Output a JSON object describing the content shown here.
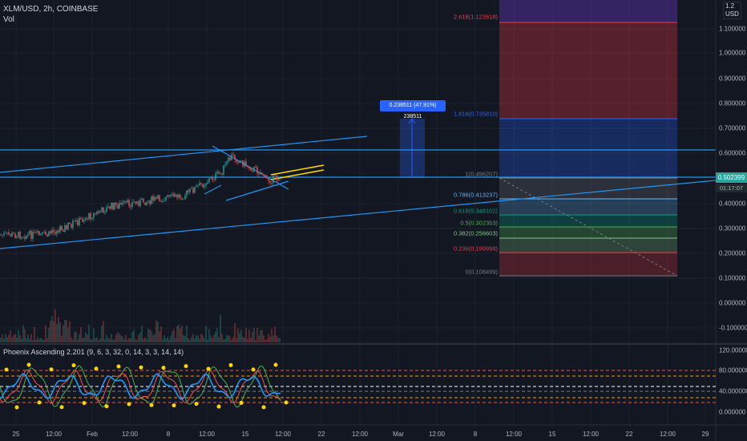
{
  "header": {
    "title": "XLM/USD, 2h, COINBASE",
    "volume_label": "Vol",
    "oscillator_label": "Phoenix Ascending 2.201 (9, 6, 3, 32, 0, 14, 3, 3, 14, 14)"
  },
  "price_axis": {
    "unit": "USD",
    "top_value": "1.2",
    "labels": [
      "1.100000",
      "1.000000",
      "0.900000",
      "0.800000",
      "0.700000",
      "0.600000",
      "0.400000",
      "0.300000",
      "0.200000",
      "0.100000",
      "0.000000",
      "-0.100000"
    ],
    "current_price": "0.502399",
    "countdown": "01:17:07"
  },
  "oscillator_axis": {
    "labels": [
      "120.000000",
      "80.000000",
      "40.000000",
      "0.000000"
    ]
  },
  "time_axis": {
    "labels": [
      "25",
      "12:00",
      "Feb",
      "12:00",
      "8",
      "12:00",
      "15",
      "12:00",
      "22",
      "12:00",
      "Mar",
      "12:00",
      "8",
      "12:00",
      "15",
      "12:00",
      "22",
      "12:00",
      "29"
    ]
  },
  "fibonacci": {
    "levels": [
      {
        "label": "2.618(1.123518)",
        "color": "#f23645"
      },
      {
        "label": "1.618(0.735810)",
        "color": "#2962ff"
      },
      {
        "label": "1(0.496207)",
        "color": "#787b86"
      },
      {
        "label": "0.786(0.413237)",
        "color": "#64b5f6"
      },
      {
        "label": "0.618(0.348102)",
        "color": "#089981"
      },
      {
        "label": "0.5(0.302353)",
        "color": "#4caf50"
      },
      {
        "label": "0.382(0.256603)",
        "color": "#81c784"
      },
      {
        "label": "0.236(0.199998)",
        "color": "#f23645"
      },
      {
        "label": "0(0.108499)",
        "color": "#787b86"
      }
    ]
  },
  "measure_label": "0.238511 (47.91%) 238511",
  "colors": {
    "background": "#131722",
    "up": "#26a69a",
    "down": "#ef5350",
    "trendline": "#2196f3",
    "channel": "#ffd600"
  }
}
